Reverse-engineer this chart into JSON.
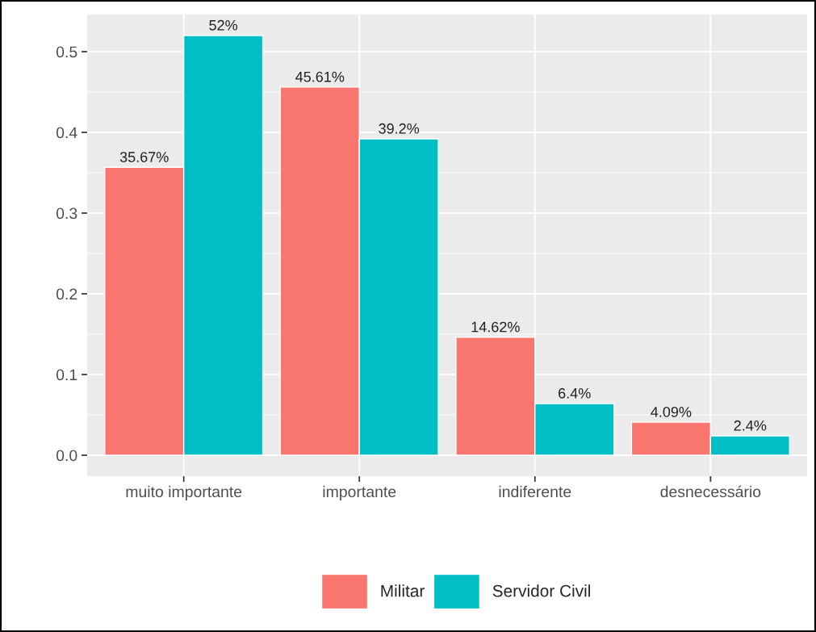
{
  "chart_data": {
    "type": "bar",
    "categories": [
      "muito importante",
      "importante",
      "indiferente",
      "desnecessário"
    ],
    "series": [
      {
        "name": "Militar",
        "color": "#f8766d",
        "values": [
          0.3567,
          0.4561,
          0.1462,
          0.0409
        ],
        "value_labels": [
          "35.67%",
          "45.61%",
          "14.62%",
          "4.09%"
        ]
      },
      {
        "name": "Servidor Civil",
        "color": "#00bfc4",
        "values": [
          0.52,
          0.392,
          0.064,
          0.024
        ],
        "value_labels": [
          "52%",
          "39.2%",
          "6.4%",
          "2.4%"
        ]
      }
    ],
    "ylim": [
      -0.026,
      0.546
    ],
    "yticks": [
      {
        "value": 0,
        "label": "0.0"
      },
      0.1,
      0.2,
      0.3,
      0.4,
      0.5
    ],
    "grid": true,
    "legend": "bottom"
  }
}
